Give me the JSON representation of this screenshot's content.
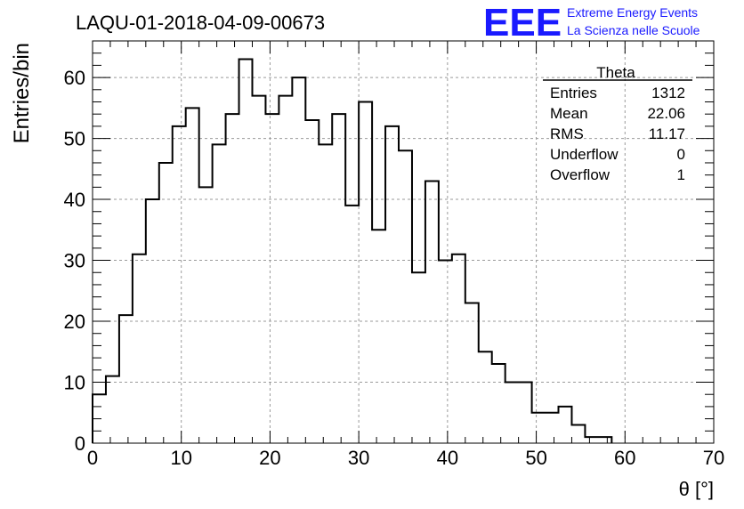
{
  "logo": {
    "mark": "EEE",
    "line1": "Extreme Energy Events",
    "line2": "La Scienza nelle Scuole",
    "color": "#1a1aff"
  },
  "chart_data": {
    "type": "bar",
    "title": "LAQU-01-2018-04-09-00673",
    "xlabel": "θ [°]",
    "ylabel": "Entries/bin",
    "xlim": [
      0,
      70
    ],
    "ylim": [
      0,
      66
    ],
    "grid": true,
    "xticks": [
      "0",
      "10",
      "20",
      "30",
      "40",
      "50",
      "60",
      "70"
    ],
    "yticks": [
      "0",
      "10",
      "20",
      "30",
      "40",
      "50",
      "60"
    ],
    "bin_width": 1.5,
    "values": [
      8,
      11,
      21,
      31,
      40,
      46,
      52,
      55,
      42,
      49,
      54,
      63,
      57,
      54,
      57,
      60,
      53,
      49,
      54,
      39,
      56,
      35,
      52,
      48,
      28,
      43,
      30,
      31,
      23,
      15,
      13,
      10,
      10,
      5,
      5,
      6,
      3,
      1,
      1
    ],
    "stats": {
      "name": "Theta",
      "rows": [
        {
          "label": "Entries",
          "value": "1312"
        },
        {
          "label": "Mean",
          "value": "22.06"
        },
        {
          "label": "RMS",
          "value": "11.17"
        },
        {
          "label": "Underflow",
          "value": "0"
        },
        {
          "label": "Overflow",
          "value": "1"
        }
      ],
      "placement": "top-right"
    }
  }
}
